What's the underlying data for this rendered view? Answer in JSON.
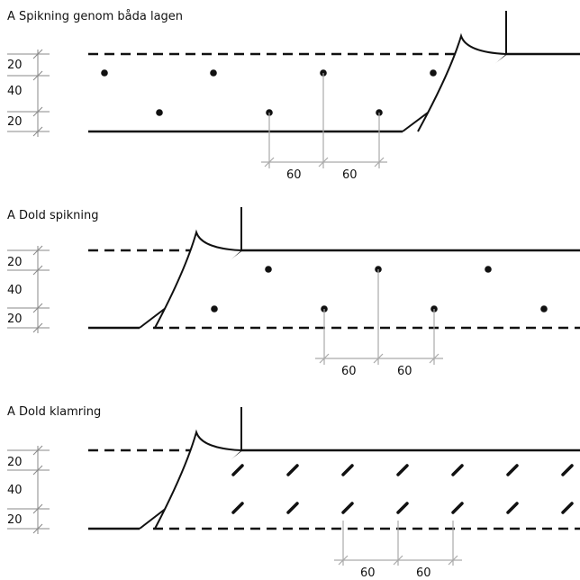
{
  "sections": [
    {
      "title": "A Spikning genom båda lagen",
      "dims_left": [
        "20",
        "40",
        "20"
      ],
      "dims_bottom": [
        "60",
        "60"
      ]
    },
    {
      "title": "A Dold spikning",
      "dims_left": [
        "20",
        "40",
        "20"
      ],
      "dims_bottom": [
        "60",
        "60"
      ]
    },
    {
      "title": "A Dold klamring",
      "dims_left": [
        "20",
        "40",
        "20"
      ],
      "dims_bottom": [
        "60",
        "60"
      ]
    }
  ],
  "colors": {
    "line": "#111111",
    "helper": "#aaaaaa",
    "tick": "#888888"
  }
}
